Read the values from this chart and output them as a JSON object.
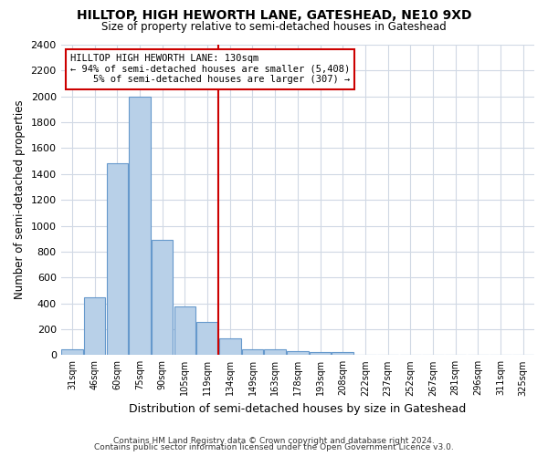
{
  "title1": "HILLTOP, HIGH HEWORTH LANE, GATESHEAD, NE10 9XD",
  "title2": "Size of property relative to semi-detached houses in Gateshead",
  "xlabel": "Distribution of semi-detached houses by size in Gateshead",
  "ylabel": "Number of semi-detached properties",
  "categories": [
    "31sqm",
    "46sqm",
    "60sqm",
    "75sqm",
    "90sqm",
    "105sqm",
    "119sqm",
    "134sqm",
    "149sqm",
    "163sqm",
    "178sqm",
    "193sqm",
    "208sqm",
    "222sqm",
    "237sqm",
    "252sqm",
    "267sqm",
    "281sqm",
    "296sqm",
    "311sqm",
    "325sqm"
  ],
  "values": [
    45,
    445,
    1480,
    2000,
    890,
    375,
    255,
    130,
    45,
    45,
    30,
    25,
    20,
    0,
    0,
    0,
    0,
    0,
    0,
    0,
    0
  ],
  "bar_color": "#b8d0e8",
  "bar_edge_color": "#6699cc",
  "property_line_index": 7,
  "property_size": "130sqm",
  "pct_smaller": "94%",
  "n_smaller": "5,408",
  "pct_larger": "5%",
  "n_larger": "307",
  "annotation_box_color": "#ffffff",
  "annotation_box_edge_color": "#cc0000",
  "line_color": "#cc0000",
  "ylim": [
    0,
    2400
  ],
  "yticks": [
    0,
    200,
    400,
    600,
    800,
    1000,
    1200,
    1400,
    1600,
    1800,
    2000,
    2200,
    2400
  ],
  "footer1": "Contains HM Land Registry data © Crown copyright and database right 2024.",
  "footer2": "Contains public sector information licensed under the Open Government Licence v3.0.",
  "bg_color": "#ffffff",
  "plot_bg_color": "#ffffff",
  "grid_color": "#d0d8e4"
}
